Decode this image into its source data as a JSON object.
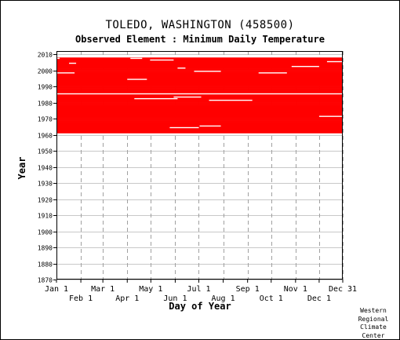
{
  "chart_data": {
    "type": "heatmap",
    "title": "TOLEDO, WASHINGTON   (458500)",
    "subtitle": "Observed Element : Minimum Daily Temperature",
    "xlabel": "Day of Year",
    "ylabel": "Year",
    "xlim": [
      1,
      365
    ],
    "ylim": [
      1870,
      2012
    ],
    "x_ticks_top_row": [
      {
        "label": "Jan 1",
        "day": 1
      },
      {
        "label": "Mar 1",
        "day": 60
      },
      {
        "label": "May 1",
        "day": 121
      },
      {
        "label": "Jul 1",
        "day": 182
      },
      {
        "label": "Sep 1",
        "day": 244
      },
      {
        "label": "Nov 1",
        "day": 305
      },
      {
        "label": "Dec 31",
        "day": 365
      }
    ],
    "x_ticks_bottom_row": [
      {
        "label": "Feb 1",
        "day": 32
      },
      {
        "label": "Apr 1",
        "day": 91
      },
      {
        "label": "Jun 1",
        "day": 152
      },
      {
        "label": "Aug 1",
        "day": 213
      },
      {
        "label": "Oct 1",
        "day": 274
      },
      {
        "label": "Dec 1",
        "day": 335
      }
    ],
    "y_ticks": [
      1870,
      1880,
      1890,
      1900,
      1910,
      1920,
      1930,
      1940,
      1950,
      1960,
      1970,
      1980,
      1990,
      2000,
      2010
    ],
    "grid": true,
    "color": "#ff0000",
    "observed_year_range": [
      1961,
      2007
    ],
    "missing_data": [
      {
        "year": 1985,
        "days": [
          1,
          365
        ]
      },
      {
        "year": 1964,
        "days": [
          145,
          182
        ]
      },
      {
        "year": 1965,
        "days": [
          183,
          210
        ]
      },
      {
        "year": 1971,
        "days": [
          335,
          365
        ]
      },
      {
        "year": 1981,
        "days": [
          195,
          250
        ]
      },
      {
        "year": 1982,
        "days": [
          100,
          155
        ]
      },
      {
        "year": 1983,
        "days": [
          150,
          185
        ]
      },
      {
        "year": 1994,
        "days": [
          91,
          116
        ]
      },
      {
        "year": 1998,
        "days": [
          1,
          24
        ]
      },
      {
        "year": 1998,
        "days": [
          258,
          294
        ]
      },
      {
        "year": 1999,
        "days": [
          176,
          210
        ]
      },
      {
        "year": 2001,
        "days": [
          155,
          165
        ]
      },
      {
        "year": 2002,
        "days": [
          300,
          335
        ]
      },
      {
        "year": 2004,
        "days": [
          17,
          26
        ]
      },
      {
        "year": 2005,
        "days": [
          345,
          365
        ]
      },
      {
        "year": 2006,
        "days": [
          120,
          150
        ]
      },
      {
        "year": 2007,
        "days": [
          1,
          5
        ]
      },
      {
        "year": 2007,
        "days": [
          95,
          110
        ]
      }
    ]
  },
  "credit": {
    "line1": "Western",
    "line2": "Regional",
    "line3": "Climate",
    "line4": "Center"
  }
}
